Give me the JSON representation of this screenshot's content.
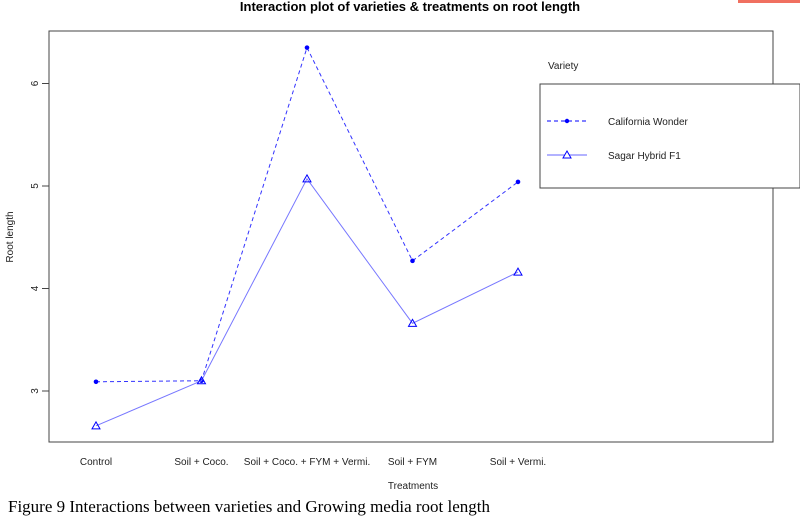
{
  "chart_data": {
    "type": "line",
    "title": "Interaction plot of varieties & treatments on root length",
    "xlabel": "Treatments",
    "ylabel": "Root length",
    "categories": [
      "Control",
      "Soil + Coco.",
      "Soil + Coco. + FYM + Vermi.",
      "Soil + FYM",
      "Soil + Vermi."
    ],
    "yticks": [
      "3",
      "4",
      "5",
      "6"
    ],
    "ylim": [
      2.52,
      6.51
    ],
    "grid": false,
    "legend_title": "Variety",
    "legend_position": "top-right",
    "series": [
      {
        "name": "California Wonder",
        "values": [
          3.09,
          3.1,
          6.35,
          4.27,
          5.04
        ],
        "line": "dashed",
        "marker": "filled-diamond",
        "color": "#0000ff"
      },
      {
        "name": "Sagar Hybrid F1",
        "values": [
          2.66,
          3.1,
          5.07,
          3.66,
          4.16
        ],
        "line": "solid",
        "marker": "open-triangle",
        "color": "#0000ff"
      }
    ]
  },
  "caption": "Figure 9 Interactions between varieties and Growing media root length"
}
